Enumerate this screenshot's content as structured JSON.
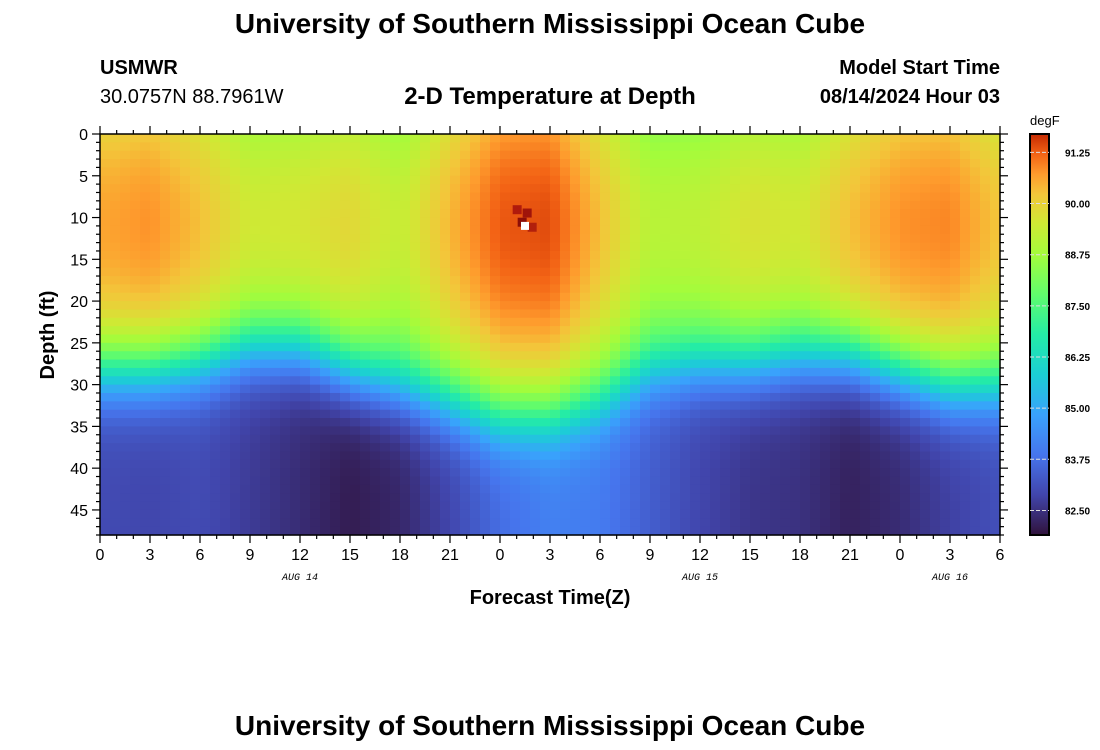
{
  "page": {
    "title_top": "University of Southern Mississippi Ocean Cube",
    "title_bottom": "University of Southern Mississippi Ocean Cube",
    "station": "USMWR",
    "location": "30.0757N  88.7961W",
    "plot_title": "2-D Temperature at Depth",
    "model_start_label": "Model Start Time",
    "model_start_value": "08/14/2024 Hour 03"
  },
  "chart_data": {
    "type": "heatmap",
    "title": "2-D Temperature at Depth",
    "xlabel": "Forecast Time(Z)",
    "ylabel": "Depth (ft)",
    "x_range_hours": [
      0,
      54
    ],
    "y_range_ft": [
      0,
      48
    ],
    "x_tick_labels": [
      "0",
      "3",
      "6",
      "9",
      "12",
      "15",
      "18",
      "21",
      "0",
      "3",
      "6",
      "9",
      "12",
      "15",
      "18",
      "21",
      "0",
      "3",
      "6"
    ],
    "y_tick_labels": [
      "0",
      "5",
      "10",
      "15",
      "20",
      "25",
      "30",
      "35",
      "40",
      "45"
    ],
    "date_labels": [
      {
        "label": "AUG 14",
        "hour": 12
      },
      {
        "label": "AUG 15",
        "hour": 36
      },
      {
        "label": "AUG 16",
        "hour": 51
      }
    ],
    "colorbar": {
      "unit": "degF",
      "min": 81.9,
      "max": 91.7,
      "ticks": [
        "91.25",
        "90.00",
        "88.75",
        "87.50",
        "86.25",
        "85.00",
        "83.75",
        "82.50"
      ]
    },
    "time_hours": [
      0,
      3,
      6,
      9,
      12,
      15,
      18,
      21,
      24,
      27,
      30,
      33,
      36,
      39,
      42,
      45,
      48,
      51,
      54
    ],
    "thermocline_depth_ft": [
      29,
      29,
      28,
      26,
      26,
      29,
      31,
      33,
      35,
      35,
      33,
      29,
      28,
      28,
      27,
      27,
      29,
      31,
      31
    ],
    "surface_temp_degF": [
      90.6,
      90.8,
      90.3,
      89.5,
      89.6,
      89.9,
      89.3,
      90.4,
      91.3,
      91.4,
      90.3,
      89.1,
      89.2,
      89.7,
      89.5,
      90.3,
      90.8,
      90.9,
      90.2
    ],
    "bottom_temp_degF": [
      83.0,
      82.9,
      83.0,
      82.7,
      82.4,
      82.1,
      82.3,
      82.9,
      83.7,
      84.1,
      84.0,
      83.4,
      82.9,
      82.6,
      82.5,
      82.2,
      82.4,
      82.8,
      83.1
    ]
  }
}
